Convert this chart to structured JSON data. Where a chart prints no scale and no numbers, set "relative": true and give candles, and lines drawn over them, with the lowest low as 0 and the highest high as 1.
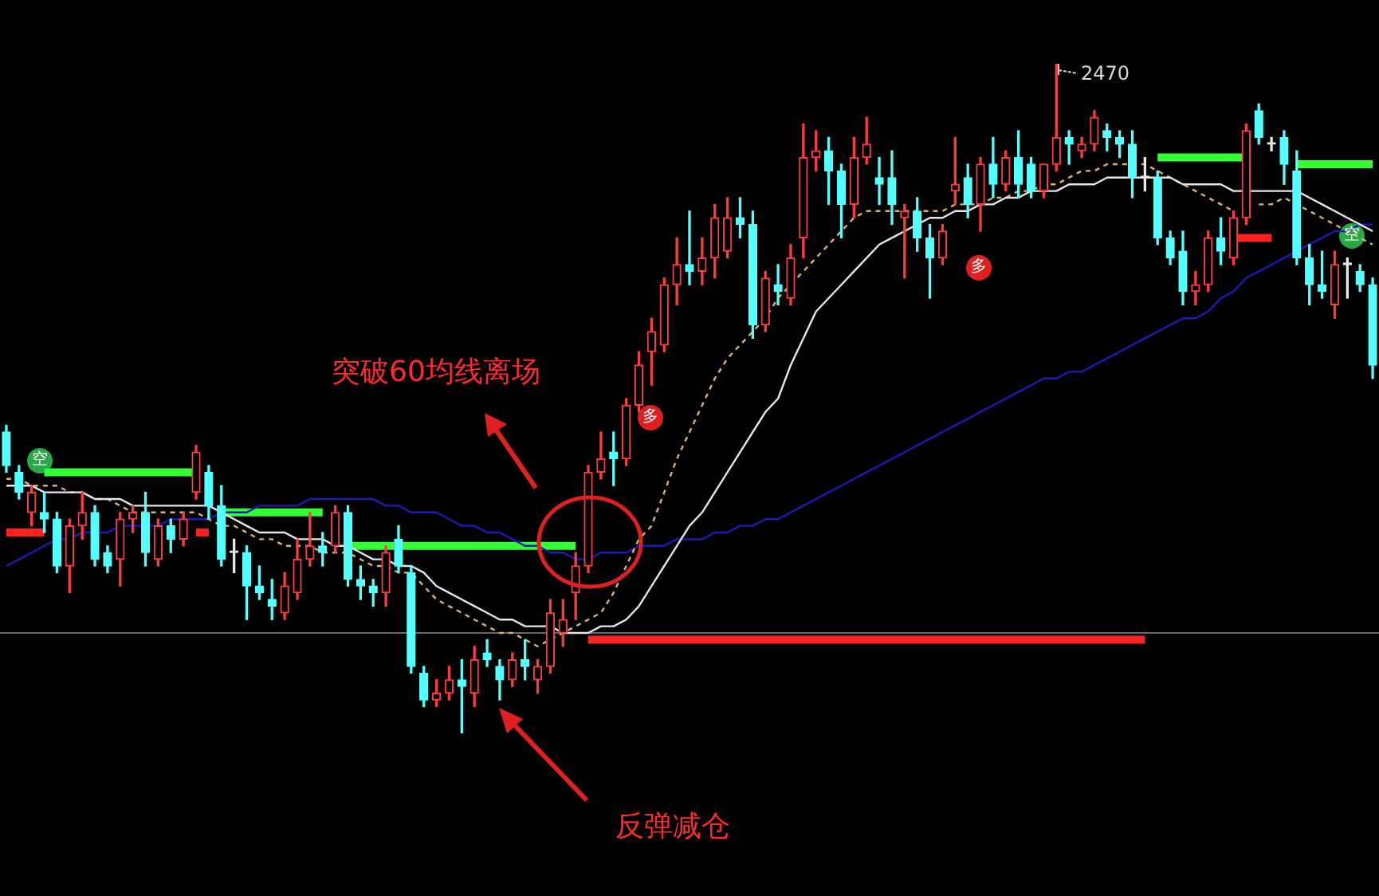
{
  "chart_data": {
    "type": "candlestick",
    "relative": true,
    "tick_labels": false,
    "categories": [
      null,
      null,
      null,
      null,
      null,
      null,
      null,
      null,
      null,
      null,
      null,
      null,
      null,
      null,
      null,
      null,
      null,
      null,
      null,
      null,
      null,
      null,
      null,
      null,
      null,
      null,
      null,
      null,
      null,
      null,
      null,
      null,
      null,
      null,
      null,
      null,
      null,
      null,
      null,
      null,
      null,
      null,
      null,
      null,
      null,
      null,
      null,
      null,
      null,
      null,
      null,
      null,
      null,
      null,
      null,
      null,
      null,
      null,
      null,
      null,
      null,
      null,
      null,
      null,
      null,
      null,
      null,
      null,
      null,
      null,
      null,
      null,
      null,
      null,
      null,
      null,
      null,
      null,
      null,
      null,
      null,
      null,
      null,
      null,
      null,
      null,
      null,
      null,
      null,
      null,
      null,
      null,
      null,
      null,
      null,
      null,
      null,
      null,
      null,
      null,
      null,
      null,
      null,
      null,
      null,
      null,
      null,
      null,
      null
    ],
    "ohlc": [
      [
        0.45,
        0.46,
        0.39,
        0.4
      ],
      [
        0.39,
        0.4,
        0.35,
        0.36
      ],
      [
        0.33,
        0.37,
        0.31,
        0.36
      ],
      [
        0.33,
        0.36,
        0.3,
        0.32
      ],
      [
        0.32,
        0.33,
        0.24,
        0.25
      ],
      [
        0.25,
        0.32,
        0.21,
        0.31
      ],
      [
        0.31,
        0.36,
        0.29,
        0.33
      ],
      [
        0.33,
        0.34,
        0.25,
        0.26
      ],
      [
        0.27,
        0.28,
        0.24,
        0.25
      ],
      [
        0.26,
        0.33,
        0.22,
        0.32
      ],
      [
        0.32,
        0.34,
        0.3,
        0.33
      ],
      [
        0.33,
        0.36,
        0.25,
        0.27
      ],
      [
        0.26,
        0.32,
        0.25,
        0.31
      ],
      [
        0.31,
        0.32,
        0.27,
        0.29
      ],
      [
        0.29,
        0.33,
        0.28,
        0.32
      ],
      [
        0.36,
        0.43,
        0.35,
        0.42
      ],
      [
        0.39,
        0.4,
        0.32,
        0.34
      ],
      [
        0.34,
        0.37,
        0.25,
        0.26
      ],
      [
        0.27,
        0.29,
        0.24,
        0.27
      ],
      [
        0.27,
        0.28,
        0.17,
        0.22
      ],
      [
        0.22,
        0.25,
        0.2,
        0.21
      ],
      [
        0.2,
        0.23,
        0.17,
        0.19
      ],
      [
        0.18,
        0.24,
        0.17,
        0.22
      ],
      [
        0.21,
        0.29,
        0.2,
        0.26
      ],
      [
        0.26,
        0.33,
        0.25,
        0.28
      ],
      [
        0.28,
        0.3,
        0.25,
        0.27
      ],
      [
        0.28,
        0.34,
        0.27,
        0.33
      ],
      [
        0.33,
        0.34,
        0.22,
        0.23
      ],
      [
        0.23,
        0.25,
        0.2,
        0.22
      ],
      [
        0.22,
        0.23,
        0.19,
        0.21
      ],
      [
        0.21,
        0.28,
        0.19,
        0.27
      ],
      [
        0.29,
        0.31,
        0.24,
        0.25
      ],
      [
        0.24,
        0.25,
        0.09,
        0.1
      ],
      [
        0.09,
        0.1,
        0.04,
        0.05
      ],
      [
        0.05,
        0.08,
        0.04,
        0.06
      ],
      [
        0.06,
        0.1,
        0.05,
        0.08
      ],
      [
        0.08,
        0.11,
        0,
        0.07
      ],
      [
        0.06,
        0.13,
        0.04,
        0.11
      ],
      [
        0.12,
        0.14,
        0.1,
        0.11
      ],
      [
        0.1,
        0.11,
        0.05,
        0.08
      ],
      [
        0.08,
        0.12,
        0.07,
        0.11
      ],
      [
        0.11,
        0.14,
        0.08,
        0.1
      ],
      [
        0.08,
        0.11,
        0.06,
        0.1
      ],
      [
        0.1,
        0.2,
        0.09,
        0.18
      ],
      [
        0.15,
        0.2,
        0.13,
        0.17
      ],
      [
        0.21,
        0.27,
        0.17,
        0.25
      ],
      [
        0.25,
        0.4,
        0.24,
        0.39
      ],
      [
        0.39,
        0.45,
        0.38,
        0.41
      ],
      [
        0.42,
        0.45,
        0.37,
        0.41
      ],
      [
        0.41,
        0.5,
        0.4,
        0.49
      ],
      [
        0.49,
        0.57,
        0.48,
        0.55
      ],
      [
        0.57,
        0.62,
        0.52,
        0.6
      ],
      [
        0.58,
        0.68,
        0.57,
        0.67
      ],
      [
        0.67,
        0.74,
        0.64,
        0.7
      ],
      [
        0.7,
        0.78,
        0.67,
        0.69
      ],
      [
        0.69,
        0.74,
        0.67,
        0.71
      ],
      [
        0.71,
        0.79,
        0.68,
        0.77
      ],
      [
        0.72,
        0.8,
        0.71,
        0.77
      ],
      [
        0.77,
        0.8,
        0.74,
        0.76
      ],
      [
        0.76,
        0.78,
        0.59,
        0.61
      ],
      [
        0.61,
        0.69,
        0.6,
        0.68
      ],
      [
        0.67,
        0.7,
        0.64,
        0.66
      ],
      [
        0.65,
        0.73,
        0.64,
        0.71
      ],
      [
        0.74,
        0.91,
        0.71,
        0.86
      ],
      [
        0.86,
        0.9,
        0.84,
        0.87
      ],
      [
        0.87,
        0.89,
        0.79,
        0.84
      ],
      [
        0.84,
        0.85,
        0.74,
        0.79
      ],
      [
        0.79,
        0.89,
        0.77,
        0.86
      ],
      [
        0.86,
        0.92,
        0.85,
        0.88
      ],
      [
        0.83,
        0.86,
        0.79,
        0.82
      ],
      [
        0.83,
        0.87,
        0.76,
        0.79
      ],
      [
        0.77,
        0.79,
        0.68,
        0.78
      ],
      [
        0.78,
        0.8,
        0.72,
        0.74
      ],
      [
        0.74,
        0.76,
        0.65,
        0.71
      ],
      [
        0.71,
        0.76,
        0.7,
        0.75
      ],
      [
        0.81,
        0.89,
        0.79,
        0.82
      ],
      [
        0.83,
        0.85,
        0.77,
        0.79
      ],
      [
        0.79,
        0.86,
        0.75,
        0.85
      ],
      [
        0.85,
        0.89,
        0.8,
        0.82
      ],
      [
        0.82,
        0.87,
        0.81,
        0.86
      ],
      [
        0.86,
        0.9,
        0.8,
        0.82
      ],
      [
        0.85,
        0.86,
        0.8,
        0.81
      ],
      [
        0.81,
        0.85,
        0.8,
        0.85
      ],
      [
        0.85,
        1,
        0.84,
        0.89
      ],
      [
        0.89,
        0.9,
        0.85,
        0.88
      ],
      [
        0.87,
        0.89,
        0.86,
        0.88
      ],
      [
        0.88,
        0.93,
        0.87,
        0.92
      ],
      [
        0.9,
        0.91,
        0.87,
        0.89
      ],
      [
        0.89,
        0.9,
        0.86,
        0.88
      ],
      [
        0.88,
        0.9,
        0.8,
        0.83
      ],
      [
        0.83,
        0.86,
        0.81,
        0.83
      ],
      [
        0.83,
        0.84,
        0.73,
        0.74
      ],
      [
        0.74,
        0.75,
        0.7,
        0.71
      ],
      [
        0.72,
        0.75,
        0.64,
        0.66
      ],
      [
        0.66,
        0.69,
        0.64,
        0.67
      ],
      [
        0.67,
        0.75,
        0.66,
        0.74
      ],
      [
        0.74,
        0.77,
        0.7,
        0.72
      ],
      [
        0.71,
        0.78,
        0.7,
        0.77
      ],
      [
        0.77,
        0.91,
        0.76,
        0.9
      ],
      [
        0.93,
        0.94,
        0.88,
        0.89
      ],
      [
        0.88,
        0.89,
        0.87,
        0.88
      ],
      [
        0.89,
        0.9,
        0.82,
        0.85
      ],
      [
        0.84,
        0.87,
        0.7,
        0.71
      ],
      [
        0.71,
        0.73,
        0.64,
        0.67
      ],
      [
        0.67,
        0.72,
        0.65,
        0.66
      ],
      [
        0.64,
        0.72,
        0.62,
        0.7
      ],
      [
        0.7,
        0.71,
        0.65,
        0.7
      ],
      [
        0.69,
        0.7,
        0.66,
        0.67
      ],
      [
        0.67,
        0.68,
        0.53,
        0.55
      ]
    ],
    "colors": [
      "#54ffff",
      "#54ffff",
      "#ff3c3c",
      "#54ffff",
      "#54ffff",
      "#ff3c3c",
      "#ff3c3c",
      "#54ffff",
      "#54ffff",
      "#ff3c3c",
      "#ff3c3c",
      "#54ffff",
      "#ff3c3c",
      "#54ffff",
      "#ff3c3c",
      "#ff3c3c",
      "#54ffff",
      "#54ffff",
      "#e8e8e8",
      "#54ffff",
      "#54ffff",
      "#54ffff",
      "#ff3c3c",
      "#ff3c3c",
      "#ff3c3c",
      "#54ffff",
      "#ff3c3c",
      "#54ffff",
      "#54ffff",
      "#54ffff",
      "#ff3c3c",
      "#54ffff",
      "#54ffff",
      "#54ffff",
      "#ff3c3c",
      "#ff3c3c",
      "#54ffff",
      "#ff3c3c",
      "#54ffff",
      "#54ffff",
      "#ff3c3c",
      "#54ffff",
      "#ff3c3c",
      "#ff3c3c",
      "#ff3c3c",
      "#ff3c3c",
      "#ff3c3c",
      "#ff3c3c",
      "#54ffff",
      "#ff3c3c",
      "#ff3c3c",
      "#ff3c3c",
      "#ff3c3c",
      "#ff3c3c",
      "#54ffff",
      "#ff3c3c",
      "#ff3c3c",
      "#ff3c3c",
      "#54ffff",
      "#54ffff",
      "#ff3c3c",
      "#54ffff",
      "#ff3c3c",
      "#ff3c3c",
      "#ff3c3c",
      "#54ffff",
      "#54ffff",
      "#ff3c3c",
      "#ff3c3c",
      "#54ffff",
      "#54ffff",
      "#ff3c3c",
      "#54ffff",
      "#54ffff",
      "#ff3c3c",
      "#ff3c3c",
      "#54ffff",
      "#ff3c3c",
      "#54ffff",
      "#ff3c3c",
      "#54ffff",
      "#54ffff",
      "#ff3c3c",
      "#ff3c3c",
      "#54ffff",
      "#ff3c3c",
      "#ff3c3c",
      "#54ffff",
      "#54ffff",
      "#54ffff",
      "#e8e8e8",
      "#54ffff",
      "#54ffff",
      "#54ffff",
      "#ff3c3c",
      "#ff3c3c",
      "#54ffff",
      "#ff3c3c",
      "#ff3c3c",
      "#54ffff",
      "#e8e8e8",
      "#54ffff",
      "#54ffff",
      "#54ffff",
      "#54ffff",
      "#ff3c3c",
      "#e8e8e8",
      "#54ffff",
      "#54ffff"
    ],
    "series": [
      {
        "type": "line",
        "color": "#e6e6e6",
        "line_style": "solid",
        "values": [
          0.37,
          0.37,
          0.37,
          0.36,
          0.36,
          0.36,
          0.36,
          0.35,
          0.35,
          0.35,
          0.34,
          0.34,
          0.34,
          0.34,
          0.34,
          0.34,
          0.34,
          0.33,
          0.32,
          0.31,
          0.3,
          0.3,
          0.3,
          0.29,
          0.29,
          0.29,
          0.28,
          0.28,
          0.27,
          0.26,
          0.26,
          0.25,
          0.25,
          0.24,
          0.22,
          0.21,
          0.2,
          0.19,
          0.18,
          0.17,
          0.17,
          0.16,
          0.16,
          0.16,
          0.15,
          0.15,
          0.15,
          0.16,
          0.16,
          0.17,
          0.19,
          0.22,
          0.25,
          0.28,
          0.31,
          0.33,
          0.36,
          0.39,
          0.42,
          0.45,
          0.48,
          0.5,
          0.55,
          0.59,
          0.63,
          0.65,
          0.67,
          0.69,
          0.71,
          0.73,
          0.74,
          0.75,
          0.76,
          0.77,
          0.77,
          0.78,
          0.78,
          0.79,
          0.79,
          0.8,
          0.8,
          0.81,
          0.81,
          0.81,
          0.82,
          0.82,
          0.82,
          0.83,
          0.83,
          0.83,
          0.83,
          0.83,
          0.83,
          0.82,
          0.82,
          0.82,
          0.82,
          0.81,
          0.81,
          0.81,
          0.81,
          0.81,
          0.81,
          0.8,
          0.79,
          0.78,
          0.77,
          0.76,
          0.75
        ]
      },
      {
        "type": "line",
        "color": "#d9b27a",
        "line_style": "dashed",
        "values": [
          0.38,
          0.38,
          0.37,
          0.37,
          0.37,
          0.36,
          0.36,
          0.35,
          0.35,
          0.34,
          0.33,
          0.33,
          0.33,
          0.33,
          0.33,
          0.33,
          0.32,
          0.31,
          0.31,
          0.3,
          0.29,
          0.29,
          0.28,
          0.28,
          0.28,
          0.27,
          0.27,
          0.27,
          0.26,
          0.25,
          0.25,
          0.24,
          0.24,
          0.22,
          0.2,
          0.19,
          0.18,
          0.17,
          0.16,
          0.15,
          0.15,
          0.14,
          0.13,
          0.14,
          0.15,
          0.16,
          0.17,
          0.18,
          0.21,
          0.25,
          0.29,
          0.31,
          0.36,
          0.41,
          0.45,
          0.49,
          0.53,
          0.56,
          0.58,
          0.6,
          0.62,
          0.65,
          0.67,
          0.69,
          0.71,
          0.73,
          0.75,
          0.77,
          0.78,
          0.78,
          0.78,
          0.78,
          0.78,
          0.78,
          0.78,
          0.79,
          0.79,
          0.79,
          0.8,
          0.8,
          0.81,
          0.81,
          0.82,
          0.82,
          0.83,
          0.84,
          0.84,
          0.85,
          0.85,
          0.85,
          0.85,
          0.84,
          0.83,
          0.82,
          0.81,
          0.8,
          0.79,
          0.78,
          null,
          0.79,
          0.79,
          0.8,
          0.79,
          0.78,
          0.77,
          0.76,
          0.75,
          0.74,
          0.73
        ]
      },
      {
        "type": "line",
        "color": "#1c1cb4",
        "line_style": "solid",
        "values": [
          0.25,
          0.26,
          0.27,
          0.28,
          0.29,
          0.29,
          0.3,
          0.3,
          0.3,
          0.31,
          0.31,
          0.31,
          0.31,
          0.32,
          0.32,
          0.32,
          0.32,
          0.33,
          0.33,
          0.33,
          0.34,
          0.34,
          0.34,
          0.34,
          0.35,
          0.35,
          0.35,
          0.35,
          0.35,
          0.35,
          0.34,
          0.34,
          0.33,
          0.33,
          0.33,
          0.32,
          0.31,
          0.31,
          0.3,
          0.3,
          0.29,
          0.28,
          0.28,
          0.27,
          0.27,
          0.26,
          0.26,
          0.27,
          0.27,
          0.27,
          0.28,
          0.28,
          0.28,
          0.29,
          0.29,
          0.29,
          0.3,
          0.3,
          0.31,
          0.31,
          0.32,
          0.32,
          0.33,
          0.34,
          0.35,
          0.36,
          0.37,
          0.38,
          0.39,
          0.4,
          0.41,
          0.42,
          0.43,
          0.44,
          0.45,
          0.46,
          0.47,
          0.48,
          0.49,
          0.5,
          0.51,
          0.52,
          0.53,
          0.53,
          0.54,
          0.54,
          0.55,
          0.56,
          0.57,
          0.58,
          0.59,
          0.6,
          0.61,
          0.62,
          0.62,
          0.63,
          0.65,
          0.66,
          0.68,
          0.69,
          0.7,
          0.71,
          0.72,
          0.73,
          0.74,
          0.75,
          0.75,
          0.76,
          0.76
        ]
      },
      {
        "type": "line",
        "color": "#33ff33",
        "line_style": "solid",
        "values": [
          null,
          null,
          null,
          0.39,
          0.39,
          0.39,
          0.39,
          0.39,
          0.39,
          0.39,
          0.39,
          0.39,
          0.39,
          0.39,
          0.39,
          0.39,
          null,
          0.33,
          0.33,
          0.33,
          0.33,
          0.33,
          0.33,
          0.33,
          0.33,
          0.33,
          null,
          0.28,
          0.28,
          0.28,
          0.28,
          0.28,
          0.28,
          0.28,
          0.28,
          0.28,
          0.28,
          0.28,
          0.28,
          0.28,
          0.28,
          0.28,
          0.28,
          0.28,
          0.28,
          0.28,
          null,
          null,
          null,
          null,
          null,
          null,
          null,
          null,
          null,
          null,
          null,
          null,
          null,
          null,
          null,
          null,
          null,
          null,
          null,
          null,
          null,
          null,
          null,
          null,
          null,
          null,
          null,
          null,
          null,
          null,
          null,
          null,
          null,
          null,
          null,
          null,
          null,
          null,
          null,
          null,
          null,
          null,
          null,
          null,
          null,
          0.86,
          0.86,
          0.86,
          0.86,
          0.86,
          0.86,
          0.86,
          0.86,
          null,
          null,
          null,
          0.85,
          0.85,
          0.85,
          0.85,
          0.85,
          0.85,
          0.85
        ]
      },
      {
        "type": "line",
        "color": "#ff2020",
        "line_style": "solid",
        "values": [
          0.3,
          0.3,
          0.3,
          0.3,
          null,
          null,
          null,
          null,
          null,
          null,
          null,
          null,
          null,
          null,
          null,
          0.3,
          0.3,
          null,
          null,
          null,
          null,
          null,
          null,
          null,
          null,
          null,
          null,
          null,
          null,
          null,
          null,
          null,
          null,
          null,
          null,
          null,
          null,
          null,
          null,
          null,
          null,
          null,
          null,
          null,
          null,
          null,
          0.14,
          0.14,
          0.14,
          0.14,
          0.14,
          0.14,
          0.14,
          0.14,
          0.14,
          0.14,
          0.14,
          0.14,
          0.14,
          0.14,
          0.14,
          0.14,
          0.14,
          0.14,
          0.14,
          0.14,
          0.14,
          0.14,
          0.14,
          0.14,
          0.14,
          0.14,
          0.14,
          0.14,
          0.14,
          0.14,
          0.14,
          0.14,
          0.14,
          0.14,
          0.14,
          0.14,
          0.14,
          0.14,
          0.14,
          0.14,
          0.14,
          0.14,
          0.14,
          0.14,
          0.14,
          null,
          null,
          null,
          null,
          null,
          null,
          0.74,
          0.74,
          0.74,
          0.74,
          null,
          null,
          null,
          null,
          null,
          null,
          null,
          null
        ]
      }
    ],
    "ref_lines": [
      {
        "axis": "y",
        "value": 0.15,
        "color": "#6a6a6a"
      }
    ],
    "annotations": [
      "2470",
      "突破60均线离场",
      "反弹减仓",
      "空",
      "多",
      "多",
      "空"
    ]
  }
}
